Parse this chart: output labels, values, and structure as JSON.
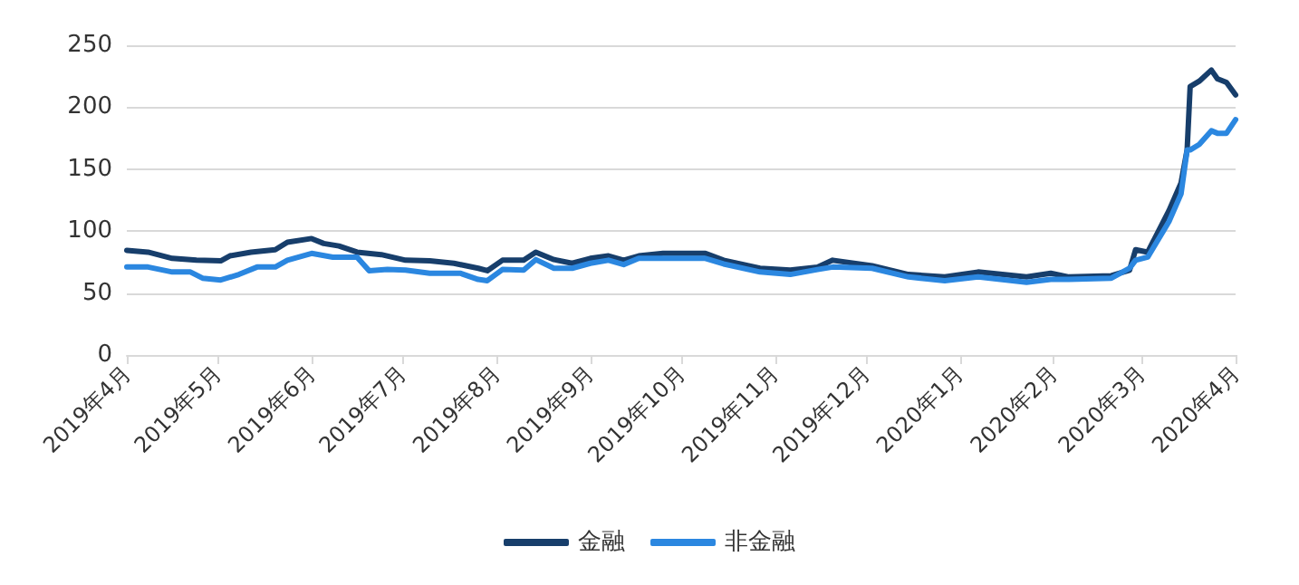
{
  "chart_data": {
    "type": "line",
    "xlim": [
      "2019-04-01",
      "2020-04-01"
    ],
    "xticks": [
      {
        "value": "2019-04-01",
        "label": "2019年4月"
      },
      {
        "value": "2019-05-01",
        "label": "2019年5月"
      },
      {
        "value": "2019-06-01",
        "label": "2019年6月"
      },
      {
        "value": "2019-07-01",
        "label": "2019年7月"
      },
      {
        "value": "2019-08-01",
        "label": "2019年8月"
      },
      {
        "value": "2019-09-01",
        "label": "2019年9月"
      },
      {
        "value": "2019-10-01",
        "label": "2019年10月"
      },
      {
        "value": "2019-11-01",
        "label": "2019年11月"
      },
      {
        "value": "2019-12-01",
        "label": "2019年12月"
      },
      {
        "value": "2020-01-01",
        "label": "2020年1月"
      },
      {
        "value": "2020-02-01",
        "label": "2020年2月"
      },
      {
        "value": "2020-03-01",
        "label": "2020年3月"
      },
      {
        "value": "2020-04-01",
        "label": "2020年4月"
      }
    ],
    "ylim": [
      0,
      250
    ],
    "yticks": [
      0,
      50,
      100,
      150,
      200,
      250
    ],
    "grid": "y",
    "legend": "bottom",
    "marker": "none",
    "line_style": "solid",
    "series": [
      {
        "name": "金融",
        "color": "#173e6b",
        "x": [
          "2019-04-01",
          "2019-04-08",
          "2019-04-16",
          "2019-04-24",
          "2019-05-02",
          "2019-05-05",
          "2019-05-12",
          "2019-05-20",
          "2019-05-24",
          "2019-06-01",
          "2019-06-05",
          "2019-06-10",
          "2019-06-16",
          "2019-06-24",
          "2019-07-02",
          "2019-07-10",
          "2019-07-18",
          "2019-07-26",
          "2019-07-29",
          "2019-08-03",
          "2019-08-10",
          "2019-08-14",
          "2019-08-20",
          "2019-08-26",
          "2019-09-01",
          "2019-09-07",
          "2019-09-12",
          "2019-09-17",
          "2019-09-25",
          "2019-10-09",
          "2019-10-15",
          "2019-10-27",
          "2019-11-06",
          "2019-11-15",
          "2019-11-20",
          "2019-12-03",
          "2019-12-15",
          "2019-12-27",
          "2020-01-07",
          "2020-01-23",
          "2020-01-31",
          "2020-02-06",
          "2020-02-20",
          "2020-02-26",
          "2020-02-28",
          "2020-03-03",
          "2020-03-10",
          "2020-03-14",
          "2020-03-16",
          "2020-03-17",
          "2020-03-20",
          "2020-03-24",
          "2020-03-26",
          "2020-03-29",
          "2020-04-01"
        ],
        "values": [
          84.5,
          83,
          78,
          76.5,
          76,
          80,
          83,
          85,
          91,
          94,
          90,
          88,
          83,
          81,
          76.5,
          76,
          74,
          70,
          68,
          76.5,
          76.5,
          83,
          77,
          74,
          78,
          80,
          76.5,
          80,
          82,
          82,
          76.5,
          70,
          68.5,
          71,
          76.5,
          72,
          65,
          63,
          67,
          63,
          66,
          63,
          64,
          68.5,
          85,
          83,
          116.5,
          139,
          165.5,
          216.6,
          221,
          230,
          223,
          220,
          210
        ]
      },
      {
        "name": "非金融",
        "color": "#2b87e0",
        "x": [
          "2019-04-01",
          "2019-04-08",
          "2019-04-16",
          "2019-04-22",
          "2019-04-26",
          "2019-05-02",
          "2019-05-08",
          "2019-05-14",
          "2019-05-20",
          "2019-05-24",
          "2019-06-01",
          "2019-06-08",
          "2019-06-16",
          "2019-06-20",
          "2019-06-26",
          "2019-07-02",
          "2019-07-10",
          "2019-07-20",
          "2019-07-26",
          "2019-07-29",
          "2019-08-03",
          "2019-08-10",
          "2019-08-14",
          "2019-08-20",
          "2019-08-26",
          "2019-09-01",
          "2019-09-07",
          "2019-09-12",
          "2019-09-17",
          "2019-09-25",
          "2019-10-09",
          "2019-10-15",
          "2019-10-27",
          "2019-11-06",
          "2019-11-15",
          "2019-11-20",
          "2019-12-03",
          "2019-12-15",
          "2019-12-27",
          "2020-01-07",
          "2020-01-23",
          "2020-01-31",
          "2020-02-06",
          "2020-02-20",
          "2020-02-26",
          "2020-02-28",
          "2020-03-03",
          "2020-03-10",
          "2020-03-14",
          "2020-03-16",
          "2020-03-17",
          "2020-03-20",
          "2020-03-24",
          "2020-03-26",
          "2020-03-29",
          "2020-04-01"
        ],
        "values": [
          71,
          71,
          67,
          67,
          62,
          60.5,
          65,
          71,
          71,
          76.5,
          82,
          79,
          79,
          68,
          69,
          68.5,
          66,
          66,
          61,
          60,
          69,
          68.5,
          77,
          70,
          70,
          74,
          76.5,
          73,
          78,
          78,
          78,
          73.5,
          67,
          65,
          69,
          71,
          70,
          63,
          60,
          63,
          58.7,
          61,
          61,
          62,
          70,
          76.5,
          79,
          107.6,
          130,
          165.5,
          165.5,
          170,
          181,
          179,
          179,
          190
        ]
      }
    ]
  }
}
